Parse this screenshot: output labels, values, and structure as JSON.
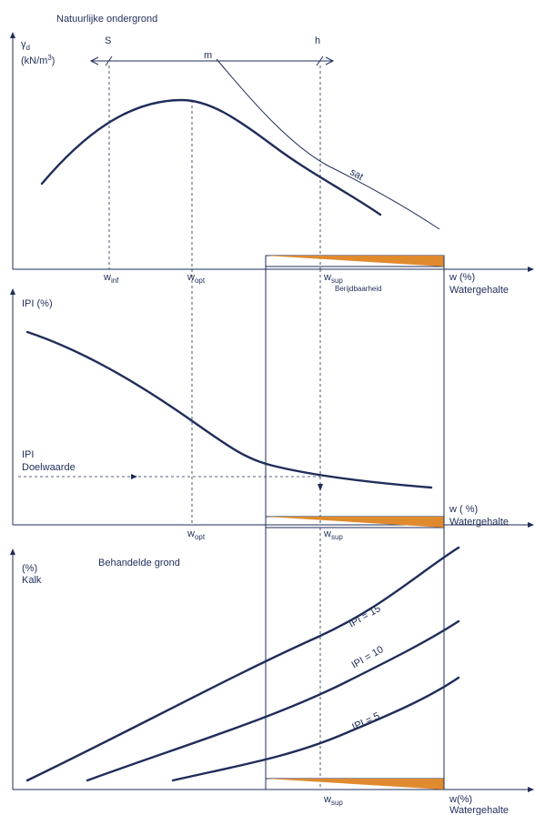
{
  "panel1": {
    "title": "Natuurlijke ondergrond",
    "ylabel_gamma": "γ",
    "ylabel_sub": "d",
    "ylabel_unit": "(kN/m",
    "ylabel_unit_sup": "3",
    "ylabel_unit_end": ")",
    "label_s": "S",
    "label_m": "m",
    "label_h": "h",
    "label_sat": "sat",
    "tick_winf": "w",
    "tick_winf_sub": "inf",
    "tick_wopt": "w",
    "tick_wopt_sub": "opt",
    "tick_wsup": "w",
    "tick_wsup_sub": "sup",
    "berijdbaarheid": "Berijdbaarheid",
    "xlabel_w": "w (%)",
    "xlabel": "Watergehalte"
  },
  "panel2": {
    "ylabel": "IPI (%)",
    "ipi_label": "IPI",
    "doelwaarde": "Doelwaarde",
    "tick_wopt": "w",
    "tick_wopt_sub": "opt",
    "tick_wsup": "w",
    "tick_wsup_sub": "sup",
    "xlabel_w": "w ( %)",
    "xlabel": "Watergehalte"
  },
  "panel3": {
    "title": "Behandelde grond",
    "ylabel_pct": "(%)",
    "ylabel": "Kalk",
    "curve15": "IPI = 15",
    "curve10": "IPI = 10",
    "curve5": "IPI = 5",
    "tick_wsup": "w",
    "tick_wsup_sub": "sup",
    "xlabel_w": "w(%)",
    "xlabel": "Watergehalte"
  },
  "colors": {
    "line": "#1f2d59",
    "wedge": "#e08a2e"
  }
}
